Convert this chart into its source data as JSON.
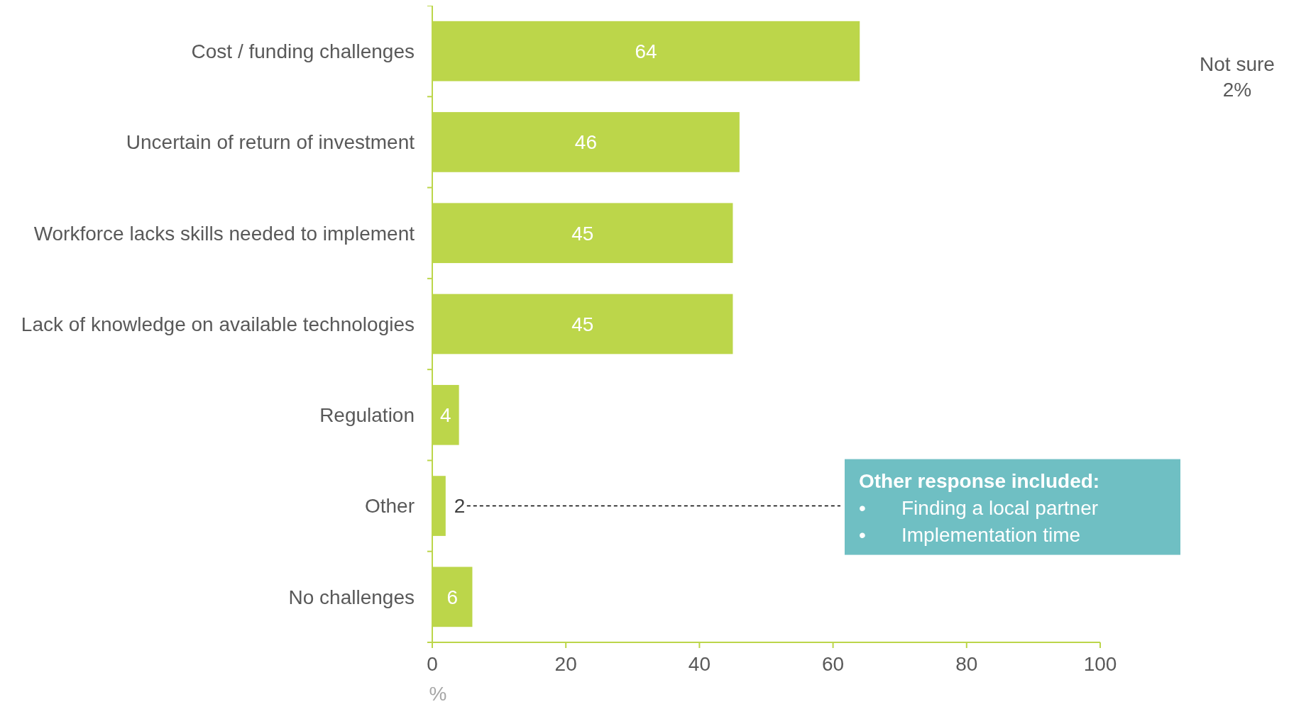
{
  "chart_data": {
    "type": "bar",
    "orientation": "horizontal",
    "categories": [
      "Cost / funding challenges",
      "Uncertain of return of investment",
      "Workforce lacks skills needed to implement",
      "Lack of knowledge on available technologies",
      "Regulation",
      "Other",
      "No challenges"
    ],
    "values": [
      64,
      46,
      45,
      45,
      4,
      2,
      6
    ],
    "color": "#bcd64a",
    "xlim": [
      0,
      100
    ],
    "xticks": [
      0,
      20,
      40,
      60,
      80,
      100
    ],
    "xlabel": "%",
    "data_labels": true,
    "grid": false,
    "legend": false,
    "annotations": [
      "Not sure\n2%",
      "Other response included:",
      "• Finding a local partner",
      "• Implementation time"
    ]
  }
}
